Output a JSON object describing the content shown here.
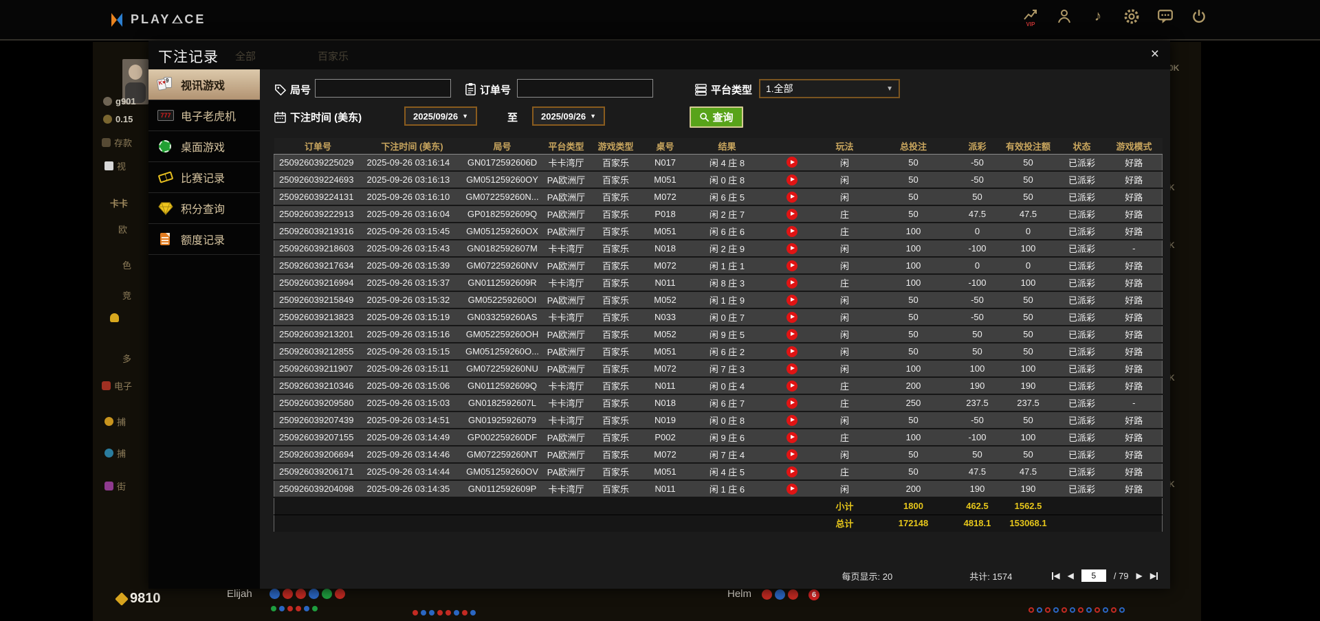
{
  "topbar": {
    "brand": "PLAYACE",
    "brand_left": "PLAY",
    "brand_right": "CE",
    "vip_label": "VIP",
    "icons": [
      "vip-icon",
      "support-icon",
      "music-icon",
      "settings-icon",
      "chat-icon",
      "power-icon"
    ],
    "music_glyph": "♪"
  },
  "modal": {
    "title": "下注记录",
    "close_glyph": "×",
    "ghost_tabs": [
      "全部",
      "百家乐"
    ],
    "sidebar": [
      {
        "label": "视讯游戏",
        "active": true
      },
      {
        "label": "电子老虎机"
      },
      {
        "label": "桌面游戏"
      },
      {
        "label": "比赛记录"
      },
      {
        "label": "积分查询"
      },
      {
        "label": "额度记录"
      }
    ],
    "filters": {
      "round_label": "局号",
      "round_value": "",
      "order_label": "订单号",
      "order_value": "",
      "platform_label": "平台类型",
      "platform_value": "1.全部",
      "time_label": "下注时间 (美东)",
      "date_from": "2025/09/26",
      "date_to": "2025/09/26",
      "to_label": "至",
      "search_label": "查询",
      "caret": "▼"
    },
    "table": {
      "headers": [
        "订单号",
        "下注时间 (美东)",
        "局号",
        "平台类型",
        "游戏类型",
        "桌号",
        "结果",
        "",
        "玩法",
        "总投注",
        "派彩",
        "有效投注额",
        "状态",
        "游戏模式"
      ],
      "rows": [
        {
          "order_no": "250926039225029",
          "bet_time": "2025-09-26 03:16:14",
          "round_no": "GN0172592606D",
          "platform": "卡卡湾厅",
          "game_type": "百家乐",
          "table_no": "N017",
          "result": "闲 4 庄 8",
          "play": "闲",
          "total_bet": "50",
          "payout": "-50",
          "payout_color": "green",
          "valid_bet": "50",
          "status": "已派彩",
          "game_mode": "好路"
        },
        {
          "order_no": "250926039224693",
          "bet_time": "2025-09-26 03:16:13",
          "round_no": "GM051259260OY",
          "platform": "PA欧洲厅",
          "game_type": "百家乐",
          "table_no": "M051",
          "result": "闲 0 庄 8",
          "play": "闲",
          "total_bet": "50",
          "payout": "-50",
          "payout_color": "green",
          "valid_bet": "50",
          "status": "已派彩",
          "game_mode": "好路"
        },
        {
          "order_no": "250926039224131",
          "bet_time": "2025-09-26 03:16:10",
          "round_no": "GM072259260N...",
          "platform": "PA欧洲厅",
          "game_type": "百家乐",
          "table_no": "M072",
          "result": "闲 6 庄 5",
          "play": "闲",
          "total_bet": "50",
          "payout": "50",
          "payout_color": "red",
          "valid_bet": "50",
          "status": "已派彩",
          "game_mode": "好路"
        },
        {
          "order_no": "250926039222913",
          "bet_time": "2025-09-26 03:16:04",
          "round_no": "GP0182592609Q",
          "platform": "PA欧洲厅",
          "game_type": "百家乐",
          "table_no": "P018",
          "result": "闲 2 庄 7",
          "play": "庄",
          "total_bet": "50",
          "payout": "47.5",
          "payout_color": "red",
          "valid_bet": "47.5",
          "status": "已派彩",
          "game_mode": "好路"
        },
        {
          "order_no": "250926039219316",
          "bet_time": "2025-09-26 03:15:45",
          "round_no": "GM051259260OX",
          "platform": "PA欧洲厅",
          "game_type": "百家乐",
          "table_no": "M051",
          "result": "闲 6 庄 6",
          "play": "庄",
          "total_bet": "100",
          "payout": "0",
          "payout_color": "white",
          "valid_bet": "0",
          "status": "已派彩",
          "game_mode": "好路"
        },
        {
          "order_no": "250926039218603",
          "bet_time": "2025-09-26 03:15:43",
          "round_no": "GN0182592607M",
          "platform": "卡卡湾厅",
          "game_type": "百家乐",
          "table_no": "N018",
          "result": "闲 2 庄 9",
          "play": "闲",
          "total_bet": "100",
          "payout": "-100",
          "payout_color": "green",
          "valid_bet": "100",
          "status": "已派彩",
          "game_mode": "-"
        },
        {
          "order_no": "250926039217634",
          "bet_time": "2025-09-26 03:15:39",
          "round_no": "GM072259260NV",
          "platform": "PA欧洲厅",
          "game_type": "百家乐",
          "table_no": "M072",
          "result": "闲 1 庄 1",
          "play": "闲",
          "total_bet": "100",
          "payout": "0",
          "payout_color": "white",
          "valid_bet": "0",
          "status": "已派彩",
          "game_mode": "好路"
        },
        {
          "order_no": "250926039216994",
          "bet_time": "2025-09-26 03:15:37",
          "round_no": "GN0112592609R",
          "platform": "卡卡湾厅",
          "game_type": "百家乐",
          "table_no": "N011",
          "result": "闲 8 庄 3",
          "play": "庄",
          "total_bet": "100",
          "payout": "-100",
          "payout_color": "green",
          "valid_bet": "100",
          "status": "已派彩",
          "game_mode": "好路"
        },
        {
          "order_no": "250926039215849",
          "bet_time": "2025-09-26 03:15:32",
          "round_no": "GM052259260OI",
          "platform": "PA欧洲厅",
          "game_type": "百家乐",
          "table_no": "M052",
          "result": "闲 1 庄 9",
          "play": "闲",
          "total_bet": "50",
          "payout": "-50",
          "payout_color": "green",
          "valid_bet": "50",
          "status": "已派彩",
          "game_mode": "好路"
        },
        {
          "order_no": "250926039213823",
          "bet_time": "2025-09-26 03:15:19",
          "round_no": "GN033259260AS",
          "platform": "卡卡湾厅",
          "game_type": "百家乐",
          "table_no": "N033",
          "result": "闲 0 庄 7",
          "play": "闲",
          "total_bet": "50",
          "payout": "-50",
          "payout_color": "green",
          "valid_bet": "50",
          "status": "已派彩",
          "game_mode": "好路"
        },
        {
          "order_no": "250926039213201",
          "bet_time": "2025-09-26 03:15:16",
          "round_no": "GM052259260OH",
          "platform": "PA欧洲厅",
          "game_type": "百家乐",
          "table_no": "M052",
          "result": "闲 9 庄 5",
          "play": "闲",
          "total_bet": "50",
          "payout": "50",
          "payout_color": "red",
          "valid_bet": "50",
          "status": "已派彩",
          "game_mode": "好路"
        },
        {
          "order_no": "250926039212855",
          "bet_time": "2025-09-26 03:15:15",
          "round_no": "GM051259260O...",
          "platform": "PA欧洲厅",
          "game_type": "百家乐",
          "table_no": "M051",
          "result": "闲 6 庄 2",
          "play": "闲",
          "total_bet": "50",
          "payout": "50",
          "payout_color": "red",
          "valid_bet": "50",
          "status": "已派彩",
          "game_mode": "好路"
        },
        {
          "order_no": "250926039211907",
          "bet_time": "2025-09-26 03:15:11",
          "round_no": "GM072259260NU",
          "platform": "PA欧洲厅",
          "game_type": "百家乐",
          "table_no": "M072",
          "result": "闲 7 庄 3",
          "play": "闲",
          "total_bet": "100",
          "payout": "100",
          "payout_color": "red",
          "valid_bet": "100",
          "status": "已派彩",
          "game_mode": "好路"
        },
        {
          "order_no": "250926039210346",
          "bet_time": "2025-09-26 03:15:06",
          "round_no": "GN0112592609Q",
          "platform": "卡卡湾厅",
          "game_type": "百家乐",
          "table_no": "N011",
          "result": "闲 0 庄 4",
          "play": "庄",
          "total_bet": "200",
          "payout": "190",
          "payout_color": "red",
          "valid_bet": "190",
          "status": "已派彩",
          "game_mode": "好路"
        },
        {
          "order_no": "250926039209580",
          "bet_time": "2025-09-26 03:15:03",
          "round_no": "GN0182592607L",
          "platform": "卡卡湾厅",
          "game_type": "百家乐",
          "table_no": "N018",
          "result": "闲 6 庄 7",
          "play": "庄",
          "total_bet": "250",
          "payout": "237.5",
          "payout_color": "red",
          "valid_bet": "237.5",
          "status": "已派彩",
          "game_mode": "-"
        },
        {
          "order_no": "250926039207439",
          "bet_time": "2025-09-26 03:14:51",
          "round_no": "GN01925926079",
          "platform": "卡卡湾厅",
          "game_type": "百家乐",
          "table_no": "N019",
          "result": "闲 0 庄 8",
          "play": "闲",
          "total_bet": "50",
          "payout": "-50",
          "payout_color": "green",
          "valid_bet": "50",
          "status": "已派彩",
          "game_mode": "好路"
        },
        {
          "order_no": "250926039207155",
          "bet_time": "2025-09-26 03:14:49",
          "round_no": "GP002259260DF",
          "platform": "PA欧洲厅",
          "game_type": "百家乐",
          "table_no": "P002",
          "result": "闲 9 庄 6",
          "play": "庄",
          "total_bet": "100",
          "payout": "-100",
          "payout_color": "green",
          "valid_bet": "100",
          "status": "已派彩",
          "game_mode": "好路"
        },
        {
          "order_no": "250926039206694",
          "bet_time": "2025-09-26 03:14:46",
          "round_no": "GM072259260NT",
          "platform": "PA欧洲厅",
          "game_type": "百家乐",
          "table_no": "M072",
          "result": "闲 7 庄 4",
          "play": "闲",
          "total_bet": "50",
          "payout": "50",
          "payout_color": "red",
          "valid_bet": "50",
          "status": "已派彩",
          "game_mode": "好路"
        },
        {
          "order_no": "250926039206171",
          "bet_time": "2025-09-26 03:14:44",
          "round_no": "GM051259260OV",
          "platform": "PA欧洲厅",
          "game_type": "百家乐",
          "table_no": "M051",
          "result": "闲 4 庄 5",
          "play": "庄",
          "total_bet": "50",
          "payout": "47.5",
          "payout_color": "red",
          "valid_bet": "47.5",
          "status": "已派彩",
          "game_mode": "好路"
        },
        {
          "order_no": "250926039204098",
          "bet_time": "2025-09-26 03:14:35",
          "round_no": "GN0112592609P",
          "platform": "卡卡湾厅",
          "game_type": "百家乐",
          "table_no": "N011",
          "result": "闲 1 庄 6",
          "play": "闲",
          "total_bet": "200",
          "payout": "190",
          "payout_color": "red",
          "valid_bet": "190",
          "status": "已派彩",
          "game_mode": "好路"
        }
      ],
      "subtotal": {
        "label": "小计",
        "total_bet": "1800",
        "payout": "462.5",
        "valid_bet": "1562.5"
      },
      "grand_total": {
        "label": "总计",
        "total_bet": "172148",
        "payout": "4818.1",
        "valid_bet": "153068.1"
      }
    },
    "pagination": {
      "per_page": "每页显示: 20",
      "total_count": "共计: 1574",
      "current_page": "5",
      "pages_suffix": "/ 79"
    }
  },
  "background": {
    "left_items": [
      "g901",
      "0.15",
      "存款",
      "视",
      "卡卡",
      "欧",
      "色",
      "竞",
      "多",
      "电子",
      "捕",
      "捕",
      "街"
    ],
    "bottom": {
      "balance": "9810",
      "player_left": "Elijah",
      "player_right": "Helm",
      "badge": "6"
    },
    "right_edge_fragments": [
      "0K",
      "K",
      "K",
      "K",
      "K"
    ],
    "beads": {
      "elijah": [
        "blue",
        "red",
        "red",
        "blue",
        "green",
        "red"
      ],
      "elijah_tiny": [
        "green",
        "blue",
        "red",
        "red",
        "blue",
        "green"
      ],
      "helm": [
        "red",
        "blue",
        "red"
      ],
      "mid": [
        "red",
        "blue",
        "blue",
        "red",
        "red",
        "blue",
        "red",
        "blue"
      ],
      "corner": [
        "red",
        "blue",
        "red",
        "blue",
        "red",
        "blue",
        "red",
        "blue",
        "red",
        "blue",
        "red",
        "blue"
      ]
    }
  }
}
